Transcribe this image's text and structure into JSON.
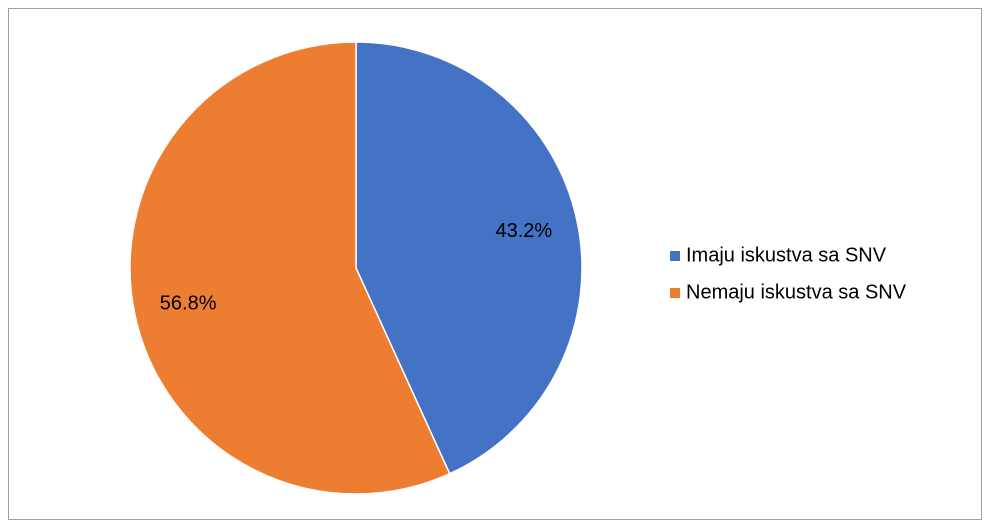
{
  "chart_data": {
    "type": "pie",
    "categories": [
      "Imaju iskustva sa SNV",
      "Nemaju iskustva sa SNV"
    ],
    "values": [
      43.2,
      56.8
    ],
    "value_labels": [
      "43.2%",
      "56.8%"
    ],
    "colors": [
      "#4472c4",
      "#ed7d31"
    ],
    "legend": "right"
  }
}
